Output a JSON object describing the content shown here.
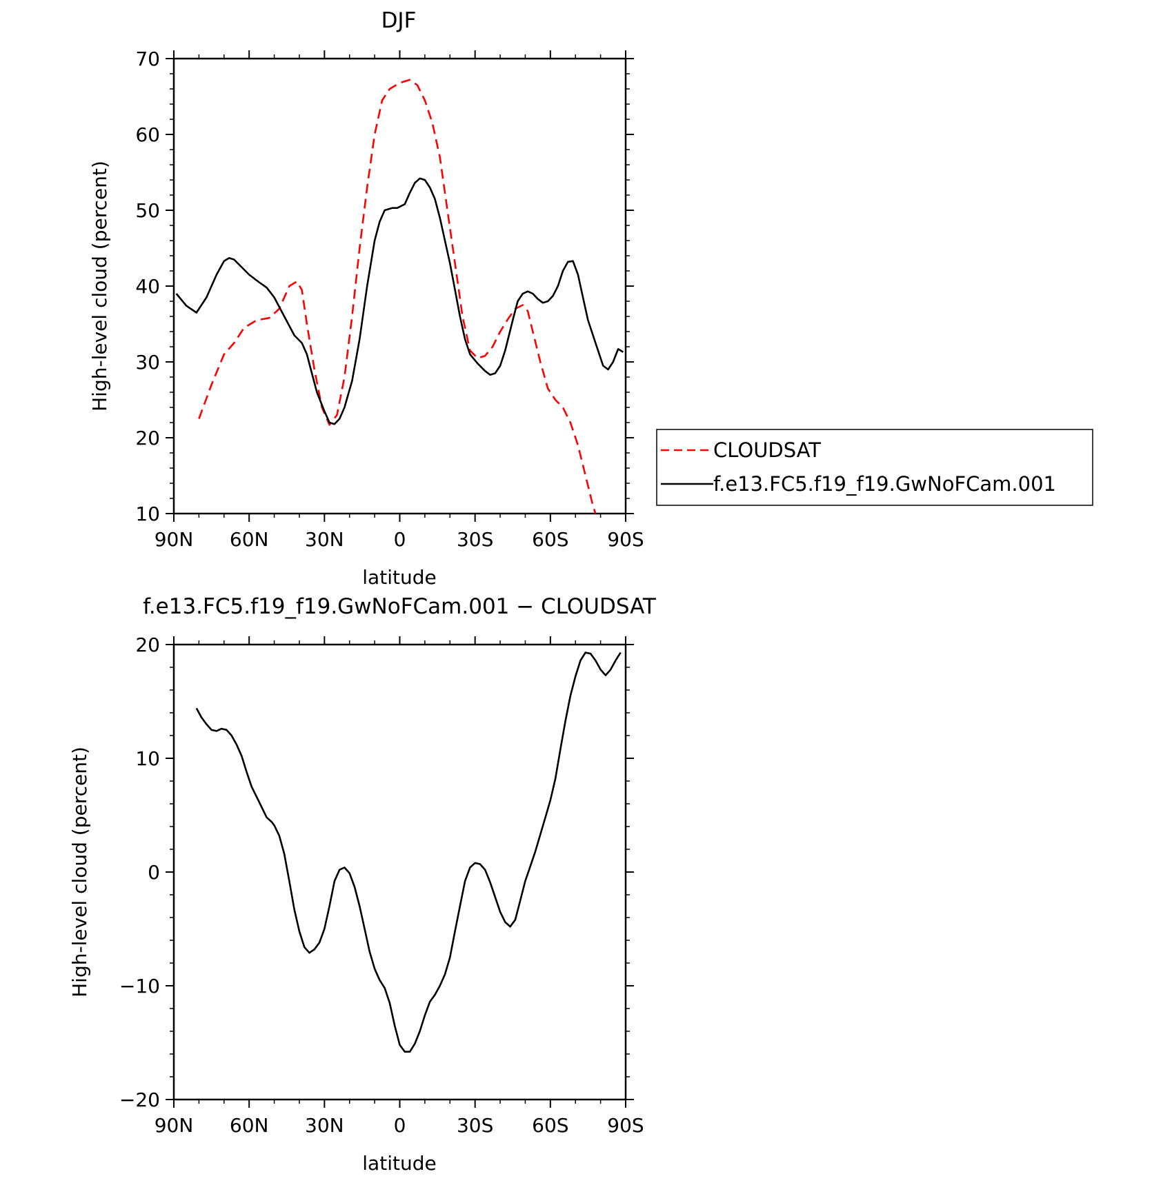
{
  "chart_data": [
    {
      "type": "line",
      "title": "DJF",
      "xlabel": "latitude",
      "ylabel": "High-level cloud (percent)",
      "xlim": [
        -90,
        90
      ],
      "ylim": [
        10,
        70
      ],
      "x_ticks": [
        {
          "value": -90,
          "label": "90N"
        },
        {
          "value": -60,
          "label": "60N"
        },
        {
          "value": -30,
          "label": "30N"
        },
        {
          "value": 0,
          "label": "0"
        },
        {
          "value": 30,
          "label": "30S"
        },
        {
          "value": 60,
          "label": "60S"
        },
        {
          "value": 90,
          "label": "90S"
        }
      ],
      "y_ticks": [
        {
          "value": 10,
          "label": "10"
        },
        {
          "value": 20,
          "label": "20"
        },
        {
          "value": 30,
          "label": "30"
        },
        {
          "value": 40,
          "label": "40"
        },
        {
          "value": 50,
          "label": "50"
        },
        {
          "value": 60,
          "label": "60"
        },
        {
          "value": 70,
          "label": "70"
        }
      ],
      "grid": false,
      "legend_position": "right",
      "series": [
        {
          "name": "CLOUDSAT",
          "color": "#ff0000",
          "dash": "dashed",
          "points": [
            [
              -80,
              22.5
            ],
            [
              -75,
              27
            ],
            [
              -70,
              31
            ],
            [
              -66,
              32.5
            ],
            [
              -62,
              34.5
            ],
            [
              -57,
              35.5
            ],
            [
              -52,
              35.8
            ],
            [
              -48,
              37
            ],
            [
              -44,
              40
            ],
            [
              -41,
              40.6
            ],
            [
              -39,
              39.5
            ],
            [
              -37,
              35
            ],
            [
              -34,
              29
            ],
            [
              -31,
              24
            ],
            [
              -28,
              21.7
            ],
            [
              -25,
              23
            ],
            [
              -22,
              28
            ],
            [
              -19,
              36
            ],
            [
              -16,
              45
            ],
            [
              -13,
              53
            ],
            [
              -10,
              60
            ],
            [
              -7,
              64.5
            ],
            [
              -4,
              66
            ],
            [
              0,
              66.8
            ],
            [
              4,
              67.2
            ],
            [
              7,
              66.5
            ],
            [
              10,
              64.5
            ],
            [
              13,
              61.5
            ],
            [
              16,
              57
            ],
            [
              19,
              50
            ],
            [
              22,
              43
            ],
            [
              25,
              36
            ],
            [
              28,
              31.5
            ],
            [
              31,
              30.5
            ],
            [
              34,
              30.8
            ],
            [
              37,
              32
            ],
            [
              40,
              34
            ],
            [
              43,
              35.6
            ],
            [
              46,
              37
            ],
            [
              49,
              37.5
            ],
            [
              51,
              36.7
            ],
            [
              53,
              34
            ],
            [
              56,
              30
            ],
            [
              59,
              26.5
            ],
            [
              62,
              25
            ],
            [
              65,
              24
            ],
            [
              68,
              22
            ],
            [
              71,
              19
            ],
            [
              74,
              15
            ],
            [
              77,
              11
            ],
            [
              78,
              10
            ]
          ]
        },
        {
          "name": "f.e13.FC5.f19_f19.GwNoFCam.001",
          "color": "#000000",
          "dash": "solid",
          "points": [
            [
              -89,
              39
            ],
            [
              -85,
              37.4
            ],
            [
              -81,
              36.5
            ],
            [
              -77,
              38.5
            ],
            [
              -73,
              41.5
            ],
            [
              -70,
              43.3
            ],
            [
              -68,
              43.7
            ],
            [
              -66,
              43.5
            ],
            [
              -63,
              42.5
            ],
            [
              -60,
              41.5
            ],
            [
              -56,
              40.5
            ],
            [
              -53,
              39.8
            ],
            [
              -50,
              38.5
            ],
            [
              -46,
              36
            ],
            [
              -42,
              33.5
            ],
            [
              -39,
              32.5
            ],
            [
              -37,
              31
            ],
            [
              -35,
              28.5
            ],
            [
              -33,
              26
            ],
            [
              -30,
              23.5
            ],
            [
              -28,
              22
            ],
            [
              -26,
              21.8
            ],
            [
              -24,
              22.5
            ],
            [
              -22,
              24
            ],
            [
              -19,
              27.5
            ],
            [
              -16,
              33
            ],
            [
              -13,
              40
            ],
            [
              -10,
              46
            ],
            [
              -8,
              48.5
            ],
            [
              -6,
              50
            ],
            [
              -3,
              50.3
            ],
            [
              -1,
              50.3
            ],
            [
              2,
              50.8
            ],
            [
              4,
              52.3
            ],
            [
              6,
              53.6
            ],
            [
              8,
              54.2
            ],
            [
              10,
              54
            ],
            [
              12,
              53
            ],
            [
              14,
              51.5
            ],
            [
              16,
              49
            ],
            [
              18,
              46
            ],
            [
              20,
              43
            ],
            [
              22,
              39.5
            ],
            [
              24,
              36
            ],
            [
              26,
              33
            ],
            [
              28,
              31
            ],
            [
              31,
              29.8
            ],
            [
              34,
              28.8
            ],
            [
              36,
              28.3
            ],
            [
              38,
              28.5
            ],
            [
              40,
              29.5
            ],
            [
              42,
              31.5
            ],
            [
              45,
              35.5
            ],
            [
              47,
              38
            ],
            [
              49,
              39
            ],
            [
              51,
              39.3
            ],
            [
              53,
              39
            ],
            [
              55,
              38.3
            ],
            [
              57,
              37.8
            ],
            [
              59,
              38
            ],
            [
              61,
              38.7
            ],
            [
              63,
              40
            ],
            [
              65,
              42
            ],
            [
              67,
              43.2
            ],
            [
              69,
              43.3
            ],
            [
              71,
              41.5
            ],
            [
              73,
              38.5
            ],
            [
              75,
              35.5
            ],
            [
              78,
              32.5
            ],
            [
              81,
              29.5
            ],
            [
              83,
              29
            ],
            [
              85,
              30
            ],
            [
              87,
              31.7
            ],
            [
              89,
              31.3
            ]
          ]
        }
      ]
    },
    {
      "type": "line",
      "title": "f.e13.FC5.f19_f19.GwNoFCam.001 − CLOUDSAT",
      "xlabel": "latitude",
      "ylabel": "High-level cloud (percent)",
      "xlim": [
        -90,
        90
      ],
      "ylim": [
        -20,
        20
      ],
      "x_ticks": [
        {
          "value": -90,
          "label": "90N"
        },
        {
          "value": -60,
          "label": "60N"
        },
        {
          "value": -30,
          "label": "30N"
        },
        {
          "value": 0,
          "label": "0"
        },
        {
          "value": 30,
          "label": "30S"
        },
        {
          "value": 60,
          "label": "60S"
        },
        {
          "value": 90,
          "label": "90S"
        }
      ],
      "y_ticks": [
        {
          "value": -20,
          "label": "−20"
        },
        {
          "value": -10,
          "label": "−10"
        },
        {
          "value": 0,
          "label": "0"
        },
        {
          "value": 10,
          "label": "10"
        },
        {
          "value": 20,
          "label": "20"
        }
      ],
      "grid": false,
      "series": [
        {
          "color": "#000000",
          "dash": "solid",
          "points": [
            [
              -81,
              14.4
            ],
            [
              -79,
              13.6
            ],
            [
              -77,
              13
            ],
            [
              -75,
              12.5
            ],
            [
              -73,
              12.4
            ],
            [
              -71,
              12.6
            ],
            [
              -69,
              12.5
            ],
            [
              -67,
              12
            ],
            [
              -65,
              11.2
            ],
            [
              -63,
              10.2
            ],
            [
              -61,
              8.8
            ],
            [
              -59,
              7.5
            ],
            [
              -57,
              6.6
            ],
            [
              -55,
              5.7
            ],
            [
              -53,
              4.8
            ],
            [
              -51,
              4.4
            ],
            [
              -50,
              4.1
            ],
            [
              -48,
              3.2
            ],
            [
              -46,
              1.6
            ],
            [
              -44,
              -0.8
            ],
            [
              -42,
              -3.3
            ],
            [
              -40,
              -5.2
            ],
            [
              -38,
              -6.6
            ],
            [
              -36,
              -7.1
            ],
            [
              -34,
              -6.8
            ],
            [
              -32,
              -6.2
            ],
            [
              -30,
              -5
            ],
            [
              -28,
              -3
            ],
            [
              -26,
              -0.8
            ],
            [
              -24,
              0.2
            ],
            [
              -22,
              0.4
            ],
            [
              -20,
              -0.1
            ],
            [
              -18,
              -1.3
            ],
            [
              -16,
              -3
            ],
            [
              -14,
              -5
            ],
            [
              -12,
              -7
            ],
            [
              -10,
              -8.5
            ],
            [
              -8,
              -9.5
            ],
            [
              -6,
              -10.2
            ],
            [
              -4,
              -11.5
            ],
            [
              -2,
              -13.5
            ],
            [
              0,
              -15.2
            ],
            [
              2,
              -15.8
            ],
            [
              4,
              -15.8
            ],
            [
              6,
              -15.1
            ],
            [
              8,
              -14
            ],
            [
              10,
              -12.6
            ],
            [
              12,
              -11.4
            ],
            [
              14,
              -10.8
            ],
            [
              16,
              -10
            ],
            [
              18,
              -9
            ],
            [
              20,
              -7.5
            ],
            [
              22,
              -5.2
            ],
            [
              24,
              -3
            ],
            [
              26,
              -0.8
            ],
            [
              28,
              0.4
            ],
            [
              30,
              0.8
            ],
            [
              32,
              0.7
            ],
            [
              34,
              0.2
            ],
            [
              36,
              -0.9
            ],
            [
              38,
              -2.2
            ],
            [
              40,
              -3.5
            ],
            [
              42,
              -4.4
            ],
            [
              44,
              -4.8
            ],
            [
              46,
              -4.2
            ],
            [
              48,
              -2.5
            ],
            [
              50,
              -0.8
            ],
            [
              52,
              0.5
            ],
            [
              54,
              1.8
            ],
            [
              56,
              3.3
            ],
            [
              58,
              4.8
            ],
            [
              60,
              6.3
            ],
            [
              62,
              8.2
            ],
            [
              64,
              10.8
            ],
            [
              66,
              13.3
            ],
            [
              68,
              15.5
            ],
            [
              70,
              17.2
            ],
            [
              72,
              18.6
            ],
            [
              74,
              19.3
            ],
            [
              76,
              19.2
            ],
            [
              78,
              18.6
            ],
            [
              80,
              17.8
            ],
            [
              82,
              17.3
            ],
            [
              84,
              17.8
            ],
            [
              86,
              18.6
            ],
            [
              88,
              19.3
            ]
          ]
        }
      ]
    }
  ]
}
